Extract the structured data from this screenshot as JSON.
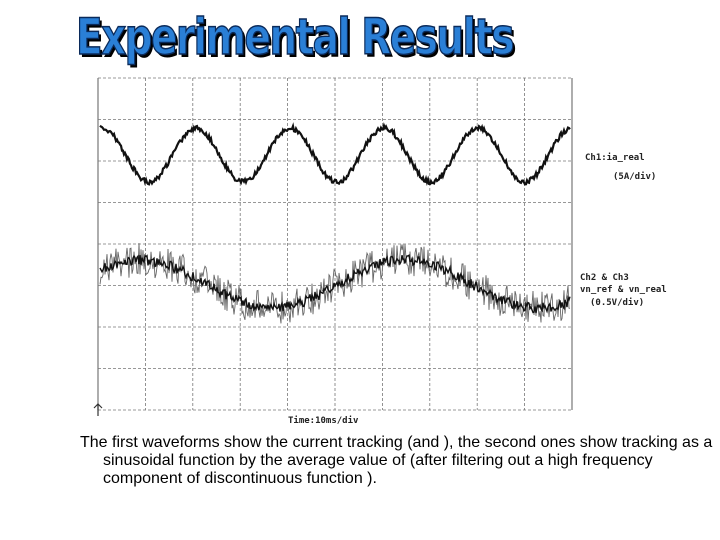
{
  "title": "Experimental Results",
  "scope": {
    "ch1_label": "Ch1:ia_real",
    "ch1_scale": "(5A/div)",
    "ch2_label": "Ch2 & Ch3",
    "ch2_signals": "vn_ref & vn_real",
    "ch2_scale": "(0.5V/div)",
    "time_scale": "Time:10ms/div"
  },
  "caption": "The first waveforms show the current tracking (and ), the second ones show tracking as a sinusoidal function by the average value of (after filtering out a high frequency component of discontinuous function )."
}
